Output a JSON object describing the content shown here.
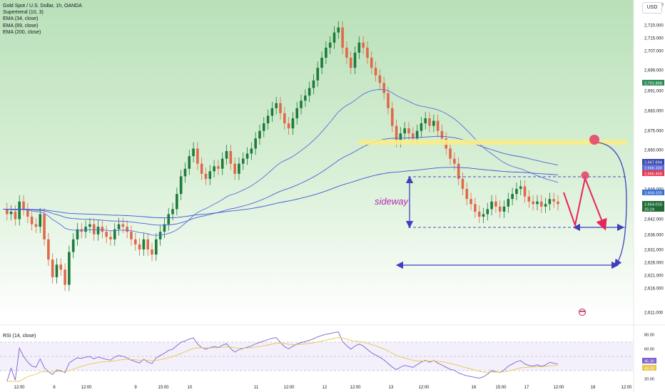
{
  "legend": {
    "symbol": "Gold Spot / U.S. Dollar, 1h, OANDA",
    "indicators": [
      "Supertrend (10, 3)",
      "EMA (34, close)",
      "EMA (89, close)",
      "EMA (200, close)"
    ]
  },
  "currency": "USD",
  "rsi_label": "RSI (14, close)",
  "annotation_text": "sideway",
  "colors": {
    "up": "#1e7b3c",
    "down": "#e0694a",
    "supertrend_up_fill": "#cfe8d2",
    "supertrend_down_fill": "#f6dcd2",
    "ema34": "#5b6ee0",
    "ema89": "#4a60d8",
    "ema200": "#3f57d6",
    "accent_arrow": "#e6245c",
    "resistance_band": "#f7ec8a",
    "rsi_line": "#7b61d1",
    "rsi_ma": "#e7c64a"
  },
  "chart_data": [
    {
      "type": "candlestick",
      "title": "Gold Spot / U.S. Dollar, 1h, OANDA",
      "y_ticks": [
        "2,725.000",
        "2,720.000",
        "2,715.000",
        "2,707.000",
        "2,699.000",
        "2,691.000",
        "2,683.000",
        "2,675.000",
        "2,660.000",
        "2,648.000",
        "2,642.000",
        "2,636.000",
        "2,631.000",
        "2,626.000",
        "2,621.000",
        "2,616.000",
        "2,611.000"
      ],
      "x_ticks": [
        "12:00",
        "6",
        "12:00",
        "9",
        "15:00",
        "10",
        "11",
        "12:00",
        "12",
        "12:00",
        "13",
        "12:00",
        "16",
        "15:00",
        "17",
        "12:00",
        "18",
        "12:00"
      ],
      "price_labels": [
        {
          "text": "2,701.868",
          "color": "#2e8b57"
        },
        {
          "text": "2,667.694",
          "color": "#3949ab"
        },
        {
          "text": "2,666.330",
          "color": "#5c6bd6"
        },
        {
          "text": "2,665.459",
          "color": "#e53950"
        },
        {
          "text": "2,658.325",
          "color": "#3a70d6"
        },
        {
          "text": "2,654.015",
          "color": "#1f6b36"
        },
        {
          "text": "25:24",
          "color": "#1f6b36"
        }
      ],
      "close_series": [
        2652,
        2650,
        2651,
        2648,
        2655,
        2652,
        2649,
        2646,
        2645,
        2650,
        2640,
        2632,
        2625,
        2630,
        2628,
        2622,
        2635,
        2640,
        2644,
        2643,
        2645,
        2646,
        2642,
        2645,
        2643,
        2641,
        2640,
        2644,
        2646,
        2645,
        2643,
        2640,
        2638,
        2636,
        2640,
        2636,
        2634,
        2640,
        2643,
        2646,
        2650,
        2652,
        2658,
        2665,
        2668,
        2673,
        2676,
        2670,
        2666,
        2664,
        2667,
        2669,
        2668,
        2672,
        2675,
        2670,
        2666,
        2670,
        2672,
        2674,
        2676,
        2680,
        2683,
        2686,
        2689,
        2692,
        2694,
        2690,
        2686,
        2684,
        2688,
        2692,
        2695,
        2697,
        2700,
        2703,
        2708,
        2712,
        2716,
        2718,
        2722,
        2724,
        2716,
        2712,
        2708,
        2714,
        2718,
        2716,
        2712,
        2708,
        2705,
        2702,
        2698,
        2692,
        2685,
        2679,
        2682,
        2684,
        2682,
        2680,
        2683,
        2686,
        2688,
        2685,
        2687,
        2683,
        2680,
        2676,
        2672,
        2670,
        2664,
        2660,
        2656,
        2654,
        2651,
        2649,
        2650,
        2652,
        2655,
        2653,
        2651,
        2653,
        2656,
        2658,
        2660,
        2661,
        2657,
        2655,
        2654,
        2655,
        2653,
        2654,
        2656,
        2655,
        2654
      ],
      "rsi": {
        "levels": [
          "80.00",
          "60.00",
          "45.30",
          "43.39",
          "20.00"
        ],
        "upper_band": 70,
        "lower_band": 30
      }
    }
  ]
}
